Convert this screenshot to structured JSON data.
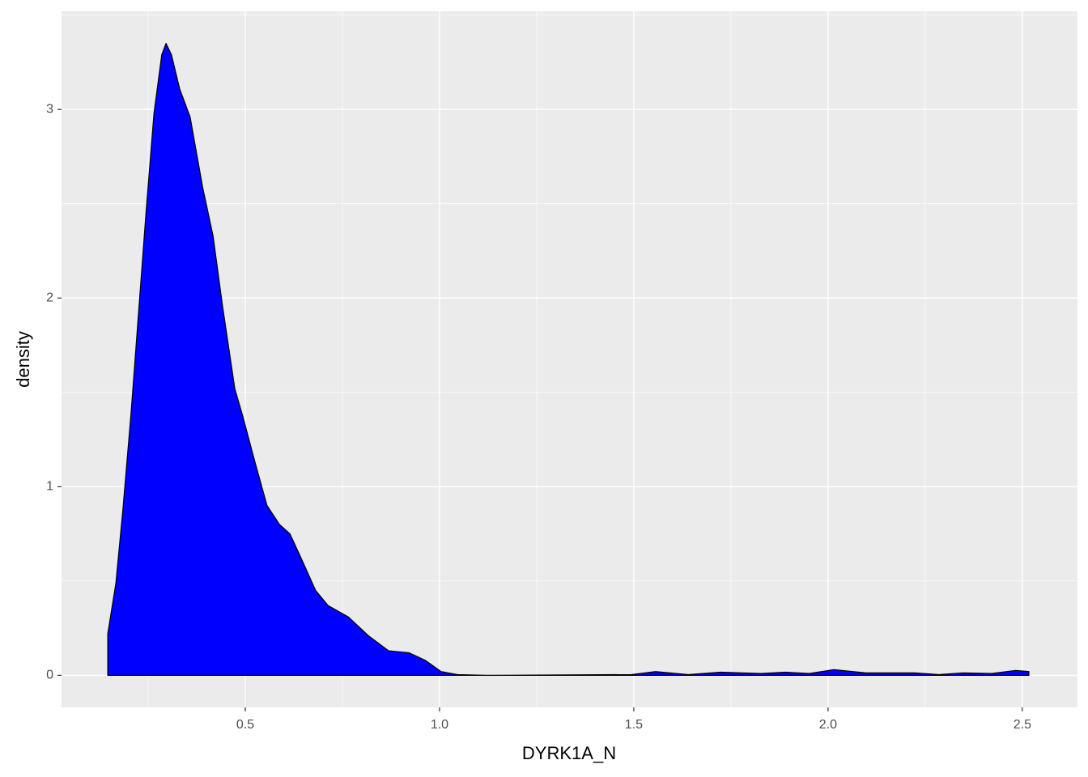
{
  "chart_data": {
    "type": "area",
    "x_label": "DYRK1A_N",
    "y_label": "density",
    "x": [
      0.146,
      0.167,
      0.185,
      0.206,
      0.227,
      0.244,
      0.265,
      0.285,
      0.296,
      0.31,
      0.331,
      0.358,
      0.39,
      0.417,
      0.442,
      0.473,
      0.494,
      0.525,
      0.556,
      0.588,
      0.615,
      0.644,
      0.681,
      0.713,
      0.765,
      0.817,
      0.869,
      0.921,
      0.963,
      1.004,
      1.046,
      1.12,
      1.494,
      1.556,
      1.64,
      1.723,
      1.827,
      1.89,
      1.952,
      2.015,
      2.098,
      2.223,
      2.285,
      2.348,
      2.421,
      2.483,
      2.517
    ],
    "values": [
      0.22,
      0.49,
      0.88,
      1.39,
      1.97,
      2.44,
      2.98,
      3.29,
      3.35,
      3.29,
      3.11,
      2.96,
      2.59,
      2.33,
      1.95,
      1.52,
      1.37,
      1.13,
      0.9,
      0.8,
      0.75,
      0.62,
      0.45,
      0.37,
      0.31,
      0.21,
      0.13,
      0.12,
      0.08,
      0.02,
      0.004,
      0,
      0.004,
      0.02,
      0.004,
      0.017,
      0.01,
      0.017,
      0.01,
      0.03,
      0.013,
      0.013,
      0.004,
      0.013,
      0.01,
      0.026,
      0.02
    ],
    "color": "#0000ff",
    "line_color": "#000000",
    "xlim": [
      0.027,
      2.642
    ],
    "ylim": [
      -0.17,
      3.52
    ],
    "xticks": [
      0.5,
      {
        "value": 1,
        "label": "1.0"
      },
      1.5,
      {
        "value": 2,
        "label": "2.0"
      },
      2.5
    ],
    "yticks": [
      0,
      1,
      2,
      3
    ],
    "grid": true
  }
}
